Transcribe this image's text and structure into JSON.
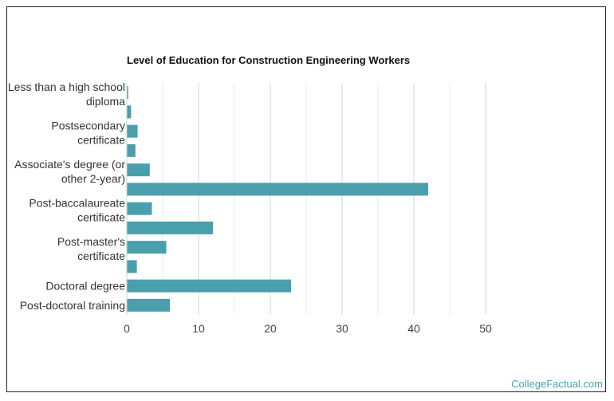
{
  "chart_data": {
    "type": "bar",
    "orientation": "horizontal",
    "title": "Level of Education for Construction Engineering Workers",
    "xlabel": "",
    "ylabel": "",
    "xlim": [
      0,
      50
    ],
    "xticks": [
      0,
      10,
      20,
      30,
      40,
      50
    ],
    "grid": true,
    "bar_color": "#4a9fad",
    "categories": [
      "Less than a high school diploma",
      "",
      "Postsecondary certificate",
      "",
      "Associate's degree (or other 2-year)",
      "",
      "Post-baccalaureate certificate",
      "",
      "Post-master's certificate",
      "",
      "Doctoral degree",
      "Post-doctoral training"
    ],
    "category_labels": [
      [
        "Less than a high school",
        "diploma"
      ],
      [],
      [
        "Postsecondary",
        "certificate"
      ],
      [],
      [
        "Associate's degree (or",
        "other 2-year)"
      ],
      [],
      [
        "Post-baccalaureate",
        "certificate"
      ],
      [],
      [
        "Post-master's",
        "certificate"
      ],
      [],
      [
        "Doctoral degree"
      ],
      [
        "Post-doctoral training"
      ]
    ],
    "values": [
      0.2,
      0.6,
      1.5,
      1.2,
      3.2,
      42.0,
      3.5,
      12.0,
      5.5,
      1.4,
      22.9,
      6.0
    ]
  },
  "watermark": "CollegeFactual.com"
}
